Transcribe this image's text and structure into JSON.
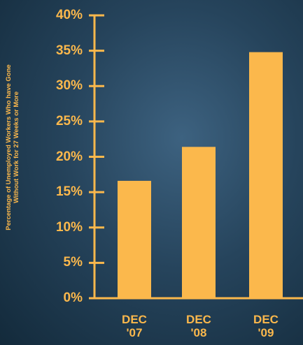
{
  "chart_data": {
    "type": "bar",
    "y_label": "Percentage of Unemployed Workers Who have Gone\nWithout Work for 27 Weeks or More",
    "categories": [
      "DEC\n'07",
      "DEC\n'08",
      "DEC\n'09"
    ],
    "values": [
      16.6,
      21.4,
      34.8
    ],
    "color": "#fbb84c",
    "ylim": [
      0,
      40
    ],
    "yticks": [
      {
        "value": 0,
        "label": "0%"
      },
      {
        "value": 5,
        "label": "5%"
      },
      {
        "value": 10,
        "label": "10%"
      },
      {
        "value": 15,
        "label": "15%"
      },
      {
        "value": 20,
        "label": "20%"
      },
      {
        "value": 25,
        "label": "25%"
      },
      {
        "value": 30,
        "label": "30%"
      },
      {
        "value": 35,
        "label": "35%"
      },
      {
        "value": 40,
        "label": "40%"
      }
    ]
  }
}
